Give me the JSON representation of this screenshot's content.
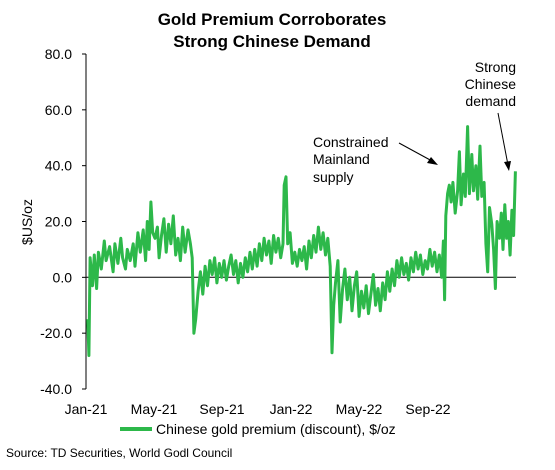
{
  "chart_data": {
    "type": "line",
    "title_lines": [
      "Gold Premium Corroborates",
      "Strong Chinese Demand"
    ],
    "ylabel": "$US/oz",
    "ylim": [
      -40,
      80
    ],
    "y_ticks": [
      -40,
      -20,
      0,
      20,
      40,
      60,
      80
    ],
    "y_tick_labels": [
      "-40.0",
      "-20.0",
      "0.0",
      "20.0",
      "40.0",
      "60.0",
      "80.0"
    ],
    "x_tick_labels": [
      "Jan-21",
      "May-21",
      "Sep-21",
      "Jan-22",
      "May-22",
      "Sep-22"
    ],
    "grid": false,
    "legend_position": "bottom",
    "series": [
      {
        "name": "Chinese gold  premium (discount), $/oz",
        "color": "#2db84a",
        "points": [
          [
            "2021-01-04",
            -15
          ],
          [
            "2021-01-06",
            -28
          ],
          [
            "2021-01-08",
            7
          ],
          [
            "2021-01-12",
            -3
          ],
          [
            "2021-01-15",
            8
          ],
          [
            "2021-01-19",
            -4
          ],
          [
            "2021-01-22",
            9
          ],
          [
            "2021-01-27",
            3
          ],
          [
            "2021-02-01",
            13
          ],
          [
            "2021-02-04",
            6
          ],
          [
            "2021-02-10",
            11
          ],
          [
            "2021-02-16",
            2
          ],
          [
            "2021-02-19",
            12
          ],
          [
            "2021-02-24",
            5
          ],
          [
            "2021-03-01",
            14
          ],
          [
            "2021-03-04",
            7
          ],
          [
            "2021-03-09",
            3
          ],
          [
            "2021-03-12",
            10
          ],
          [
            "2021-03-17",
            6
          ],
          [
            "2021-03-22",
            12
          ],
          [
            "2021-03-25",
            4
          ],
          [
            "2021-03-30",
            16
          ],
          [
            "2021-04-03",
            9
          ],
          [
            "2021-04-08",
            17
          ],
          [
            "2021-04-12",
            6
          ],
          [
            "2021-04-15",
            20
          ],
          [
            "2021-04-18",
            10
          ],
          [
            "2021-04-21",
            27
          ],
          [
            "2021-04-24",
            16
          ],
          [
            "2021-04-28",
            14
          ],
          [
            "2021-05-02",
            18
          ],
          [
            "2021-05-05",
            7
          ],
          [
            "2021-05-09",
            15
          ],
          [
            "2021-05-13",
            21
          ],
          [
            "2021-05-17",
            9
          ],
          [
            "2021-05-21",
            19
          ],
          [
            "2021-05-25",
            12
          ],
          [
            "2021-05-29",
            22
          ],
          [
            "2021-06-02",
            8
          ],
          [
            "2021-06-06",
            14
          ],
          [
            "2021-06-10",
            6
          ],
          [
            "2021-06-14",
            18
          ],
          [
            "2021-06-18",
            9
          ],
          [
            "2021-06-23",
            17
          ],
          [
            "2021-06-27",
            12
          ],
          [
            "2021-06-30",
            7
          ],
          [
            "2021-07-03",
            -20
          ],
          [
            "2021-07-06",
            -15
          ],
          [
            "2021-07-10",
            -5
          ],
          [
            "2021-07-14",
            2
          ],
          [
            "2021-07-18",
            -6
          ],
          [
            "2021-07-22",
            4
          ],
          [
            "2021-07-26",
            -3
          ],
          [
            "2021-07-30",
            6
          ],
          [
            "2021-08-03",
            1
          ],
          [
            "2021-08-07",
            7
          ],
          [
            "2021-08-11",
            -2
          ],
          [
            "2021-08-15",
            5
          ],
          [
            "2021-08-19",
            0
          ],
          [
            "2021-08-23",
            6
          ],
          [
            "2021-08-27",
            -1
          ],
          [
            "2021-08-31",
            4
          ],
          [
            "2021-09-04",
            8
          ],
          [
            "2021-09-08",
            1
          ],
          [
            "2021-09-12",
            6
          ],
          [
            "2021-09-16",
            -2
          ],
          [
            "2021-09-20",
            5
          ],
          [
            "2021-09-24",
            0
          ],
          [
            "2021-09-28",
            7
          ],
          [
            "2021-10-02",
            2
          ],
          [
            "2021-10-06",
            9
          ],
          [
            "2021-10-10",
            3
          ],
          [
            "2021-10-14",
            10
          ],
          [
            "2021-10-18",
            4
          ],
          [
            "2021-10-22",
            12
          ],
          [
            "2021-10-26",
            6
          ],
          [
            "2021-10-30",
            14
          ],
          [
            "2021-11-03",
            8
          ],
          [
            "2021-11-07",
            13
          ],
          [
            "2021-11-11",
            5
          ],
          [
            "2021-11-15",
            15
          ],
          [
            "2021-11-19",
            9
          ],
          [
            "2021-11-23",
            14
          ],
          [
            "2021-11-27",
            7
          ],
          [
            "2021-12-01",
            12
          ],
          [
            "2021-12-03",
            33
          ],
          [
            "2021-12-06",
            36
          ],
          [
            "2021-12-09",
            12
          ],
          [
            "2021-12-13",
            16
          ],
          [
            "2021-12-17",
            5
          ],
          [
            "2021-12-21",
            9
          ],
          [
            "2021-12-25",
            4
          ],
          [
            "2021-12-29",
            10
          ],
          [
            "2022-01-02",
            6
          ],
          [
            "2022-01-06",
            11
          ],
          [
            "2022-01-10",
            3
          ],
          [
            "2022-01-14",
            13
          ],
          [
            "2022-01-18",
            7
          ],
          [
            "2022-01-22",
            15
          ],
          [
            "2022-01-26",
            9
          ],
          [
            "2022-01-30",
            18
          ],
          [
            "2022-02-03",
            10
          ],
          [
            "2022-02-07",
            16
          ],
          [
            "2022-02-11",
            8
          ],
          [
            "2022-02-15",
            14
          ],
          [
            "2022-02-19",
            4
          ],
          [
            "2022-02-22",
            -27
          ],
          [
            "2022-02-25",
            -10
          ],
          [
            "2022-02-28",
            -2
          ],
          [
            "2022-03-04",
            6
          ],
          [
            "2022-03-08",
            -16
          ],
          [
            "2022-03-12",
            -4
          ],
          [
            "2022-03-16",
            3
          ],
          [
            "2022-03-20",
            -8
          ],
          [
            "2022-03-24",
            0
          ],
          [
            "2022-03-28",
            -12
          ],
          [
            "2022-04-01",
            -3
          ],
          [
            "2022-04-05",
            2
          ],
          [
            "2022-04-09",
            -14
          ],
          [
            "2022-04-13",
            -5
          ],
          [
            "2022-04-17",
            -11
          ],
          [
            "2022-04-21",
            -3
          ],
          [
            "2022-04-25",
            -13
          ],
          [
            "2022-04-29",
            -6
          ],
          [
            "2022-05-03",
            1
          ],
          [
            "2022-05-07",
            -10
          ],
          [
            "2022-05-11",
            -4
          ],
          [
            "2022-05-15",
            -12
          ],
          [
            "2022-05-19",
            -2
          ],
          [
            "2022-05-23",
            -8
          ],
          [
            "2022-05-27",
            2
          ],
          [
            "2022-05-31",
            -5
          ],
          [
            "2022-06-04",
            3
          ],
          [
            "2022-06-08",
            -3
          ],
          [
            "2022-06-12",
            6
          ],
          [
            "2022-06-16",
            0
          ],
          [
            "2022-06-20",
            7
          ],
          [
            "2022-06-24",
            1
          ],
          [
            "2022-06-28",
            5
          ],
          [
            "2022-07-02",
            -1
          ],
          [
            "2022-07-06",
            7
          ],
          [
            "2022-07-10",
            2
          ],
          [
            "2022-07-14",
            9
          ],
          [
            "2022-07-18",
            3
          ],
          [
            "2022-07-22",
            8
          ],
          [
            "2022-07-26",
            1
          ],
          [
            "2022-07-30",
            6
          ],
          [
            "2022-08-03",
            3
          ],
          [
            "2022-08-07",
            10
          ],
          [
            "2022-08-11",
            4
          ],
          [
            "2022-08-15",
            9
          ],
          [
            "2022-08-19",
            2
          ],
          [
            "2022-08-23",
            8
          ],
          [
            "2022-08-27",
            0
          ],
          [
            "2022-08-30",
            13
          ],
          [
            "2022-09-01",
            -8
          ],
          [
            "2022-09-03",
            22
          ],
          [
            "2022-09-06",
            30
          ],
          [
            "2022-09-09",
            33
          ],
          [
            "2022-09-12",
            27
          ],
          [
            "2022-09-15",
            34
          ],
          [
            "2022-09-19",
            23
          ],
          [
            "2022-09-23",
            31
          ],
          [
            "2022-09-26",
            45
          ],
          [
            "2022-09-29",
            26
          ],
          [
            "2022-10-03",
            37
          ],
          [
            "2022-10-06",
            29
          ],
          [
            "2022-10-10",
            54
          ],
          [
            "2022-10-13",
            30
          ],
          [
            "2022-10-17",
            44
          ],
          [
            "2022-10-20",
            31
          ],
          [
            "2022-10-24",
            40
          ],
          [
            "2022-10-27",
            28
          ],
          [
            "2022-10-31",
            47
          ],
          [
            "2022-11-03",
            29
          ],
          [
            "2022-11-07",
            34
          ],
          [
            "2022-11-10",
            12
          ],
          [
            "2022-11-13",
            2
          ],
          [
            "2022-11-16",
            25
          ],
          [
            "2022-11-20",
            19
          ],
          [
            "2022-11-23",
            10
          ],
          [
            "2022-11-26",
            -4
          ],
          [
            "2022-11-29",
            20
          ],
          [
            "2022-12-03",
            14
          ],
          [
            "2022-12-06",
            23
          ],
          [
            "2022-12-09",
            10
          ],
          [
            "2022-12-12",
            26
          ],
          [
            "2022-12-15",
            14
          ],
          [
            "2022-12-18",
            20
          ],
          [
            "2022-12-21",
            8
          ],
          [
            "2022-12-24",
            24
          ],
          [
            "2022-12-27",
            15
          ],
          [
            "2022-12-30",
            38
          ]
        ]
      }
    ],
    "annotations": [
      {
        "lines": [
          "Constrained",
          "Mainland",
          "supply"
        ],
        "points_to": [
          "2022-09-01",
          40
        ]
      },
      {
        "lines": [
          "Strong",
          "Chinese",
          "demand"
        ],
        "points_to": [
          "2022-12-24",
          38
        ]
      }
    ],
    "source": "Source: TD Securities, World Godl Council"
  }
}
